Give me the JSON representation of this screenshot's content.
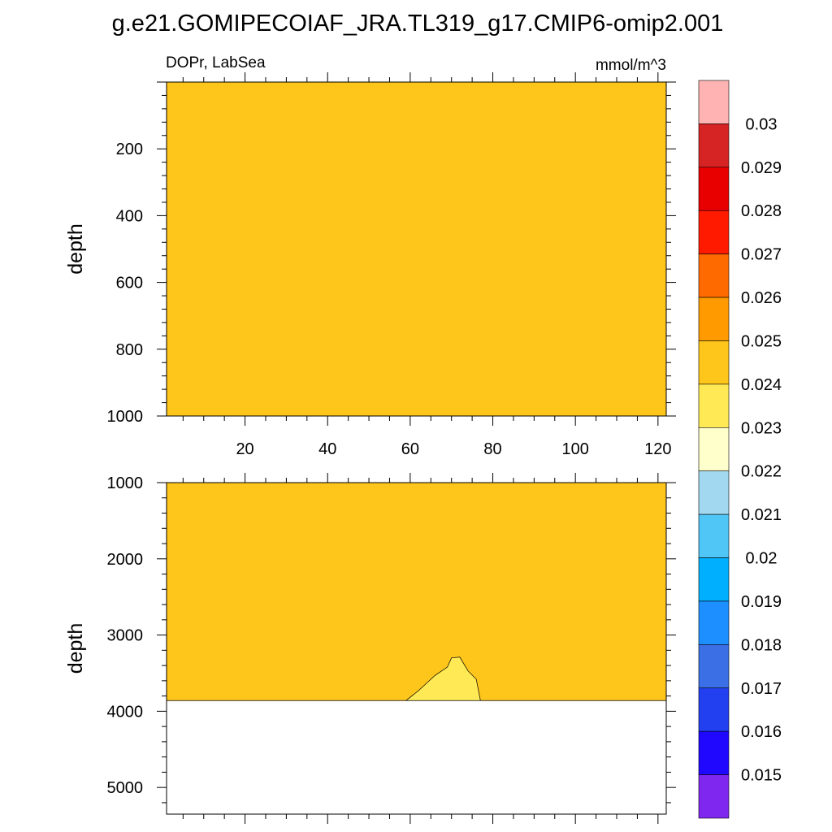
{
  "chart_data": {
    "type": "heatmap",
    "title": "g.e21.GOMIPECOIAF_JRA.TL319_g17.CMIP6-omip2.001",
    "variable_label": "DOPr, LabSea",
    "units_label": "mmol/m^3",
    "xlim": [
      1,
      122
    ],
    "x_ticks": [
      20,
      40,
      60,
      80,
      100,
      120
    ],
    "grid": false,
    "panels": [
      {
        "ylabel": "depth",
        "ylim": [
          0,
          1000
        ],
        "y_ticks": [
          200,
          400,
          600,
          800,
          1000
        ],
        "fill_value": 0.0245,
        "fill_color": "#fec51b",
        "ocean_bottom": null,
        "features": []
      },
      {
        "ylabel": "depth",
        "ylim": [
          1000,
          5350
        ],
        "y_ticks": [
          1000,
          2000,
          3000,
          4000,
          5000
        ],
        "fill_value": 0.0245,
        "fill_color": "#fec51b",
        "ocean_bottom": 3860,
        "features": [
          {
            "range": "0.023-0.024",
            "color": "#ffea55",
            "outline": [
              [
                59,
                3860
              ],
              [
                62,
                3730
              ],
              [
                66,
                3530
              ],
              [
                69,
                3420
              ],
              [
                70,
                3300
              ],
              [
                72,
                3290
              ],
              [
                74,
                3470
              ],
              [
                76,
                3580
              ],
              [
                77,
                3860
              ]
            ]
          }
        ]
      }
    ],
    "colorbar": {
      "labels": [
        "0.03",
        "0.029",
        "0.028",
        "0.027",
        "0.026",
        "0.025",
        "0.024",
        "0.023",
        "0.022",
        "0.021",
        "0.02",
        "0.019",
        "0.018",
        "0.017",
        "0.016",
        "0.015"
      ],
      "colors": [
        "#ffb3b3",
        "#d62424",
        "#e80000",
        "#ff1a00",
        "#ff6a00",
        "#ff9b00",
        "#fec51b",
        "#ffea55",
        "#ffffcb",
        "#a3d9f0",
        "#4fc6f5",
        "#00b0ff",
        "#1e8fff",
        "#3b6fe6",
        "#2240ef",
        "#2008ff",
        "#8027ef"
      ]
    }
  }
}
